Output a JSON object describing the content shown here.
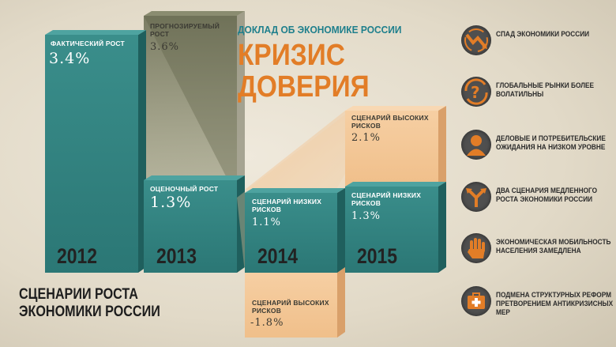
{
  "header": {
    "subtitle": "ДОКЛАД ОБ ЭКОНОМИКЕ РОССИИ",
    "title": "КРИЗИС ДОВЕРИЯ"
  },
  "bottom_title": "СЦЕНАРИИ РОСТА ЭКОНОМИКИ РОССИИ",
  "colors": {
    "teal": "#2f8583",
    "orange_light": "#f5c99a",
    "forecast_olive": "#7b7d63",
    "accent_orange": "#e27d27",
    "accent_teal": "#1e7f8c"
  },
  "chart_data": {
    "type": "bar",
    "years": [
      "2012",
      "2013",
      "2014",
      "2015"
    ],
    "series": [
      {
        "name": "ФАКТИЧЕСКИЙ РОСТ",
        "year": "2012",
        "value": 3.4,
        "label": "3.4%"
      },
      {
        "name": "ПРОГНОЗИРУЕМЫЙ РОСТ",
        "year": "2013",
        "value": 3.6,
        "label": "3.6%"
      },
      {
        "name": "ОЦЕНОЧНЫЙ РОСТ",
        "year": "2013",
        "value": 1.3,
        "label": "1.3%"
      },
      {
        "name": "СЦЕНАРИЙ НИЗКИХ РИСКОВ",
        "year": "2014",
        "value": 1.1,
        "label": "1.1%"
      },
      {
        "name": "СЦЕНАРИЙ ВЫСОКИХ РИСКОВ",
        "year": "2014",
        "value": -1.8,
        "label": "-1.8%"
      },
      {
        "name": "СЦЕНАРИЙ ВЫСОКИХ РИСКОВ",
        "year": "2015",
        "value": 2.1,
        "label": "2.1%"
      },
      {
        "name": "СЦЕНАРИЙ НИЗКИХ РИСКОВ",
        "year": "2015",
        "value": 1.3,
        "label": "1.3%"
      }
    ]
  },
  "labels": {
    "b2012": {
      "name": "ФАКТИЧЕСКИЙ РОСТ",
      "value": "3.4%"
    },
    "b2013f": {
      "name": "ПРОГНОЗИРУЕМЫЙ РОСТ",
      "value": "3.6%"
    },
    "b2013e": {
      "name": "ОЦЕНОЧНЫЙ РОСТ",
      "value": "1.3%"
    },
    "b2014l": {
      "name": "СЦЕНАРИЙ НИЗКИХ РИСКОВ",
      "value": "1.1%"
    },
    "b2014h": {
      "name": "СЦЕНАРИЙ ВЫСОКИХ РИСКОВ",
      "value": "-1.8%"
    },
    "b2015h": {
      "name": "СЦЕНАРИЙ ВЫСОКИХ РИСКОВ",
      "value": "2.1%"
    },
    "b2015l": {
      "name": "СЦЕНАРИЙ НИЗКИХ РИСКОВ",
      "value": "1.3%"
    }
  },
  "sidebar": [
    {
      "icon": "declining-chart-icon",
      "text": "СПАД ЭКОНОМИКИ РОССИИ"
    },
    {
      "icon": "question-arrows-icon",
      "text": "ГЛОБАЛЬНЫЕ РЫНКИ БОЛЕЕ ВОЛАТИЛЬНЫ"
    },
    {
      "icon": "person-icon",
      "text": "ДЕЛОВЫЕ И ПОТРЕБИТЕЛЬСКИЕ ОЖИДАНИЯ НА НИЗКОМ УРОВНЕ"
    },
    {
      "icon": "split-arrow-icon",
      "text": "ДВА СЦЕНАРИЯ МЕДЛЕННОГО РОСТА ЭКОНОМИКИ РОССИИ"
    },
    {
      "icon": "hand-stop-icon",
      "text": "ЭКОНОМИЧЕСКАЯ МОБИЛЬНОСТЬ НАСЕЛЕНИЯ ЗАМЕДЛЕНА"
    },
    {
      "icon": "first-aid-icon",
      "text": "ПОДМЕНА СТРУКТУРНЫХ РЕФОРМ ПРЕТВОРЕНИЕМ АНТИКРИЗИСНЫХ МЕР"
    }
  ]
}
